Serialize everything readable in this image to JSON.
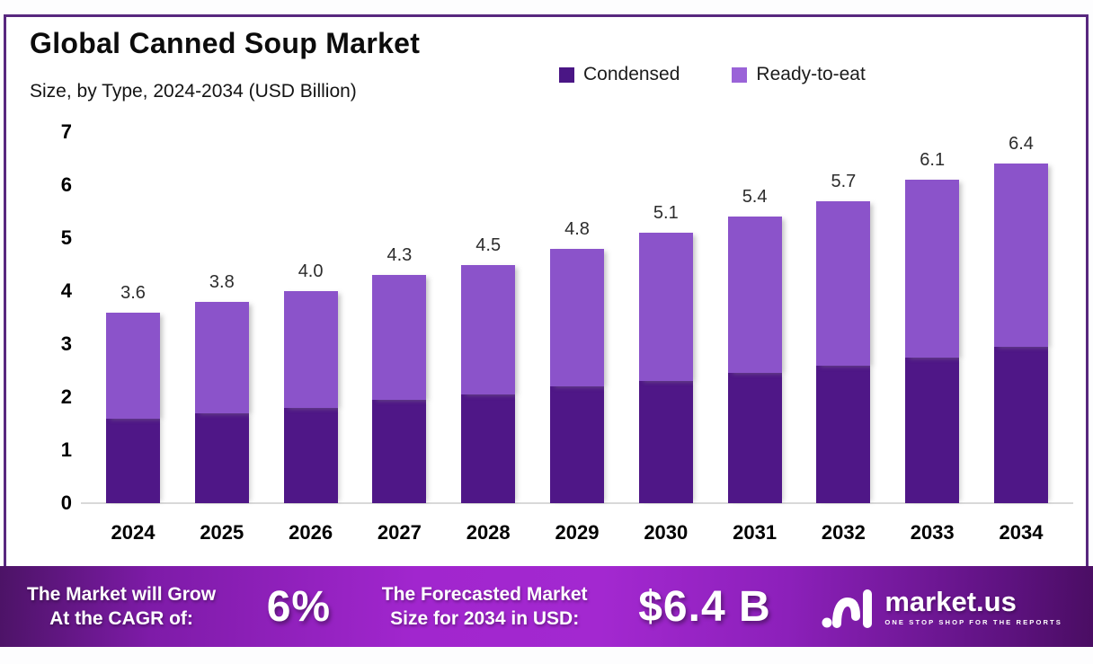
{
  "header": {
    "title": "Global Canned Soup Market",
    "subtitle": "Size, by Type, 2024-2034 (USD Billion)"
  },
  "legend": [
    {
      "label": "Condensed",
      "color": "#4a1685"
    },
    {
      "label": "Ready-to-eat",
      "color": "#9a63d8"
    }
  ],
  "chart_data": {
    "type": "bar",
    "stacked": true,
    "title": "Global Canned Soup Market Size, by Type, 2024-2034 (USD Billion)",
    "categories": [
      "2024",
      "2025",
      "2026",
      "2027",
      "2028",
      "2029",
      "2030",
      "2031",
      "2032",
      "2033",
      "2034"
    ],
    "series": [
      {
        "name": "Condensed",
        "color": "#4f1787",
        "values": [
          1.6,
          1.7,
          1.8,
          1.95,
          2.05,
          2.2,
          2.3,
          2.45,
          2.6,
          2.75,
          2.95
        ]
      },
      {
        "name": "Ready-to-eat",
        "color": "#8b53ca",
        "values": [
          2.0,
          2.1,
          2.2,
          2.35,
          2.45,
          2.6,
          2.8,
          2.95,
          3.1,
          3.35,
          3.45
        ]
      }
    ],
    "total_labels": [
      "3.6",
      "3.8",
      "4.0",
      "4.3",
      "4.5",
      "4.8",
      "5.1",
      "5.4",
      "5.7",
      "6.1",
      "6.4"
    ],
    "xlabel": "",
    "ylabel": "USD Billion",
    "ylim": [
      0,
      7
    ],
    "yticks": [
      0,
      1,
      2,
      3,
      4,
      5,
      6,
      7
    ],
    "grid": false,
    "legend_position": "top-right"
  },
  "footer": {
    "cagr_line1": "The Market will Grow",
    "cagr_line2": "At the CAGR of:",
    "cagr_value": "6%",
    "forecast_line1": "The Forecasted Market",
    "forecast_line2": "Size for 2034 in USD:",
    "forecast_value": "$6.4 B",
    "brand": "market.us",
    "brand_tagline": "ONE STOP SHOP FOR THE REPORTS"
  },
  "colors": {
    "chart_border": "#58287f",
    "banner_left": "#4c1366",
    "banner_center": "#a328d0",
    "banner_right": "#4a0d63",
    "axis_line": "#d9d9d9"
  }
}
